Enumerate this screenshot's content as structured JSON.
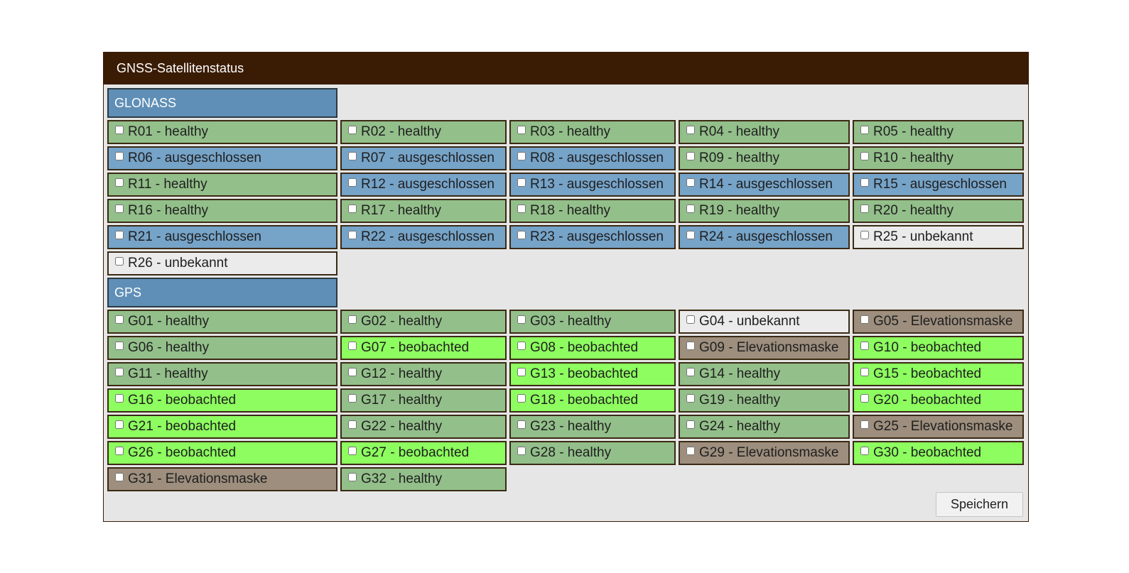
{
  "window": {
    "title": "GNSS-Satellitenstatus"
  },
  "groups": [
    {
      "name": "GLONASS",
      "satellites": [
        {
          "label": "R01 - healthy",
          "status": "healthy"
        },
        {
          "label": "R02 - healthy",
          "status": "healthy"
        },
        {
          "label": "R03 - healthy",
          "status": "healthy"
        },
        {
          "label": "R04 - healthy",
          "status": "healthy"
        },
        {
          "label": "R05 - healthy",
          "status": "healthy"
        },
        {
          "label": "R06 - ausgeschlossen",
          "status": "excluded"
        },
        {
          "label": "R07 - ausgeschlossen",
          "status": "excluded"
        },
        {
          "label": "R08 - ausgeschlossen",
          "status": "excluded"
        },
        {
          "label": "R09 - healthy",
          "status": "healthy"
        },
        {
          "label": "R10 - healthy",
          "status": "healthy"
        },
        {
          "label": "R11 - healthy",
          "status": "healthy"
        },
        {
          "label": "R12 - ausgeschlossen",
          "status": "excluded"
        },
        {
          "label": "R13 - ausgeschlossen",
          "status": "excluded"
        },
        {
          "label": "R14 - ausgeschlossen",
          "status": "excluded"
        },
        {
          "label": "R15 - ausgeschlossen",
          "status": "excluded"
        },
        {
          "label": "R16 - healthy",
          "status": "healthy"
        },
        {
          "label": "R17 - healthy",
          "status": "healthy"
        },
        {
          "label": "R18 - healthy",
          "status": "healthy"
        },
        {
          "label": "R19 - healthy",
          "status": "healthy"
        },
        {
          "label": "R20 - healthy",
          "status": "healthy"
        },
        {
          "label": "R21 - ausgeschlossen",
          "status": "excluded"
        },
        {
          "label": "R22 - ausgeschlossen",
          "status": "excluded"
        },
        {
          "label": "R23 - ausgeschlossen",
          "status": "excluded"
        },
        {
          "label": "R24 - ausgeschlossen",
          "status": "excluded"
        },
        {
          "label": "R25 - unbekannt",
          "status": "unknown"
        },
        {
          "label": "R26 - unbekannt",
          "status": "unknown"
        }
      ]
    },
    {
      "name": "GPS",
      "satellites": [
        {
          "label": "G01 - healthy",
          "status": "healthy"
        },
        {
          "label": "G02 - healthy",
          "status": "healthy"
        },
        {
          "label": "G03 - healthy",
          "status": "healthy"
        },
        {
          "label": "G04 - unbekannt",
          "status": "unknown"
        },
        {
          "label": "G05 - Elevationsmaske",
          "status": "elevation"
        },
        {
          "label": "G06 - healthy",
          "status": "healthy"
        },
        {
          "label": "G07 - beobachted",
          "status": "observed"
        },
        {
          "label": "G08 - beobachted",
          "status": "observed"
        },
        {
          "label": "G09 - Elevationsmaske",
          "status": "elevation"
        },
        {
          "label": "G10 - beobachted",
          "status": "observed"
        },
        {
          "label": "G11 - healthy",
          "status": "healthy"
        },
        {
          "label": "G12 - healthy",
          "status": "healthy"
        },
        {
          "label": "G13 - beobachted",
          "status": "observed"
        },
        {
          "label": "G14 - healthy",
          "status": "healthy"
        },
        {
          "label": "G15 - beobachted",
          "status": "observed"
        },
        {
          "label": "G16 - beobachted",
          "status": "observed"
        },
        {
          "label": "G17 - healthy",
          "status": "healthy"
        },
        {
          "label": "G18 - beobachted",
          "status": "observed"
        },
        {
          "label": "G19 - healthy",
          "status": "healthy"
        },
        {
          "label": "G20 - beobachted",
          "status": "observed"
        },
        {
          "label": "G21 - beobachted",
          "status": "observed"
        },
        {
          "label": "G22 - healthy",
          "status": "healthy"
        },
        {
          "label": "G23 - healthy",
          "status": "healthy"
        },
        {
          "label": "G24 - healthy",
          "status": "healthy"
        },
        {
          "label": "G25 - Elevationsmaske",
          "status": "elevation"
        },
        {
          "label": "G26 - beobachted",
          "status": "observed"
        },
        {
          "label": "G27 - beobachted",
          "status": "observed"
        },
        {
          "label": "G28 - healthy",
          "status": "healthy"
        },
        {
          "label": "G29 - Elevationsmaske",
          "status": "elevation"
        },
        {
          "label": "G30 - beobachted",
          "status": "observed"
        },
        {
          "label": "G31 - Elevationsmaske",
          "status": "elevation"
        },
        {
          "label": "G32 - healthy",
          "status": "healthy"
        }
      ]
    }
  ],
  "footer": {
    "save_label": "Speichern"
  },
  "colors": {
    "titlebar": "#3a1c05",
    "group_header": "#5f8fb6",
    "healthy": "#93bf8a",
    "excluded": "#76a3c8",
    "unknown": "#ebebeb",
    "observed": "#8dfd5f",
    "elevation": "#9d8e7d"
  }
}
